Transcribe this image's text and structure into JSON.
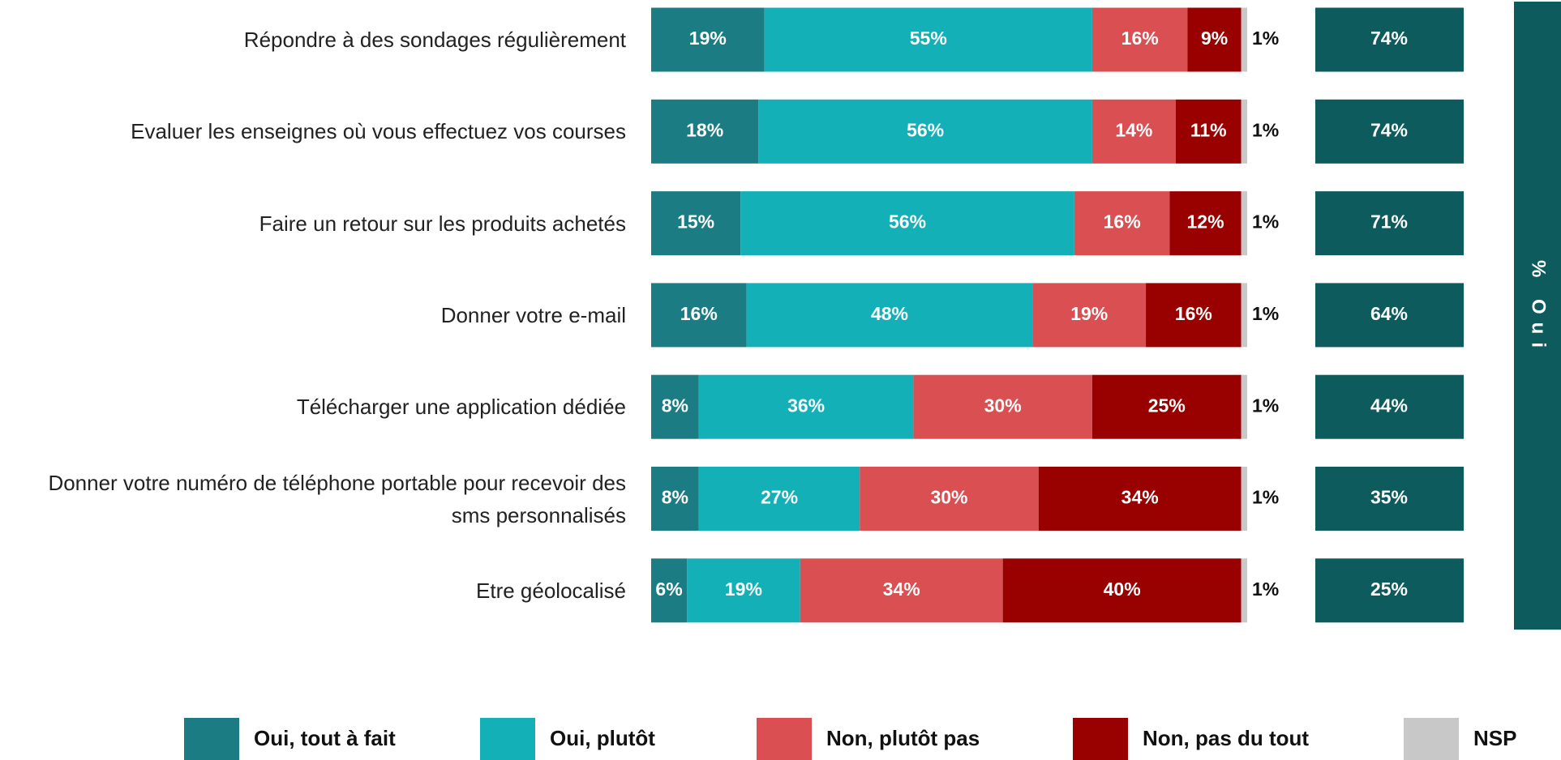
{
  "chart_data": {
    "type": "stacked-bar-horizontal",
    "categories": [
      "Répondre à des sondages régulièrement",
      "Evaluer les enseignes où vous effectuez vos courses",
      "Faire un retour sur les produits achetés",
      "Donner votre e-mail",
      "Télécharger une application dédiée",
      "Donner votre numéro de téléphone portable pour recevoir des sms personnalisés",
      "Etre géolocalisé"
    ],
    "xlim": [
      0,
      100
    ],
    "series": [
      {
        "name": "Oui, tout à fait",
        "color": "#1b7d83",
        "values": [
          19,
          18,
          15,
          16,
          8,
          8,
          6
        ],
        "value_labels": [
          "19%",
          "18%",
          "15%",
          "16%",
          "8%",
          "8%",
          "6%"
        ]
      },
      {
        "name": "Oui, plutôt",
        "color": "#14b0b8",
        "values": [
          55,
          56,
          56,
          48,
          36,
          27,
          19
        ],
        "value_labels": [
          "55%",
          "56%",
          "56%",
          "48%",
          "36%",
          "27%",
          "19%"
        ]
      },
      {
        "name": "Non, plutôt pas",
        "color": "#d94f52",
        "values": [
          16,
          14,
          16,
          19,
          30,
          30,
          34
        ],
        "value_labels": [
          "16%",
          "14%",
          "16%",
          "19%",
          "30%",
          "30%",
          "34%"
        ]
      },
      {
        "name": "Non, pas du tout",
        "color": "#990000",
        "values": [
          9,
          11,
          12,
          16,
          25,
          34,
          40
        ],
        "value_labels": [
          "9%",
          "11%",
          "12%",
          "16%",
          "25%",
          "34%",
          "40%"
        ]
      },
      {
        "name": "NSP",
        "color": "#c8c8c8",
        "values": [
          1,
          1,
          1,
          1,
          1,
          1,
          1
        ],
        "value_labels": [
          "1%",
          "1%",
          "1%",
          "1%",
          "1%",
          "1%",
          "1%"
        ]
      }
    ],
    "totals": {
      "label": "% Oui",
      "color": "#0e5b5e",
      "values": [
        74,
        74,
        71,
        64,
        44,
        35,
        25
      ],
      "value_labels": [
        "74%",
        "74%",
        "71%",
        "64%",
        "44%",
        "35%",
        "25%"
      ]
    }
  }
}
